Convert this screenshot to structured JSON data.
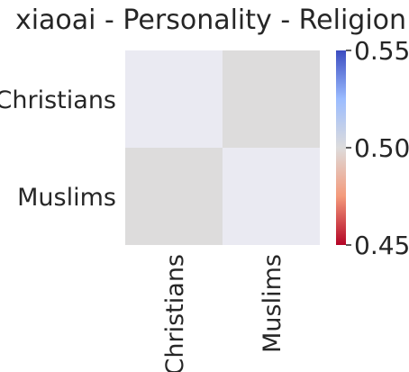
{
  "chart_data": {
    "type": "heatmap",
    "title": "xiaoai - Personality - Religion",
    "xlabel": "",
    "ylabel": "",
    "rows": [
      "Christians",
      "Muslims"
    ],
    "columns": [
      "Christians",
      "Muslims"
    ],
    "values": [
      [
        null,
        0.5
      ],
      [
        0.5,
        null
      ]
    ],
    "missing_color": "#eaeaf2",
    "cell_colors": [
      [
        "#eaeaf2",
        "#dddcdc"
      ],
      [
        "#dddcdc",
        "#eaeaf2"
      ]
    ],
    "colorbar": {
      "colormap": "coolwarm_r",
      "range": [
        0.45,
        0.55
      ],
      "ticks": [
        "0.45",
        "0.50",
        "0.55"
      ],
      "stops": [
        "#b40426",
        "#f49a7b",
        "#dddcdc",
        "#9bbcff",
        "#3b4cc0"
      ]
    }
  }
}
